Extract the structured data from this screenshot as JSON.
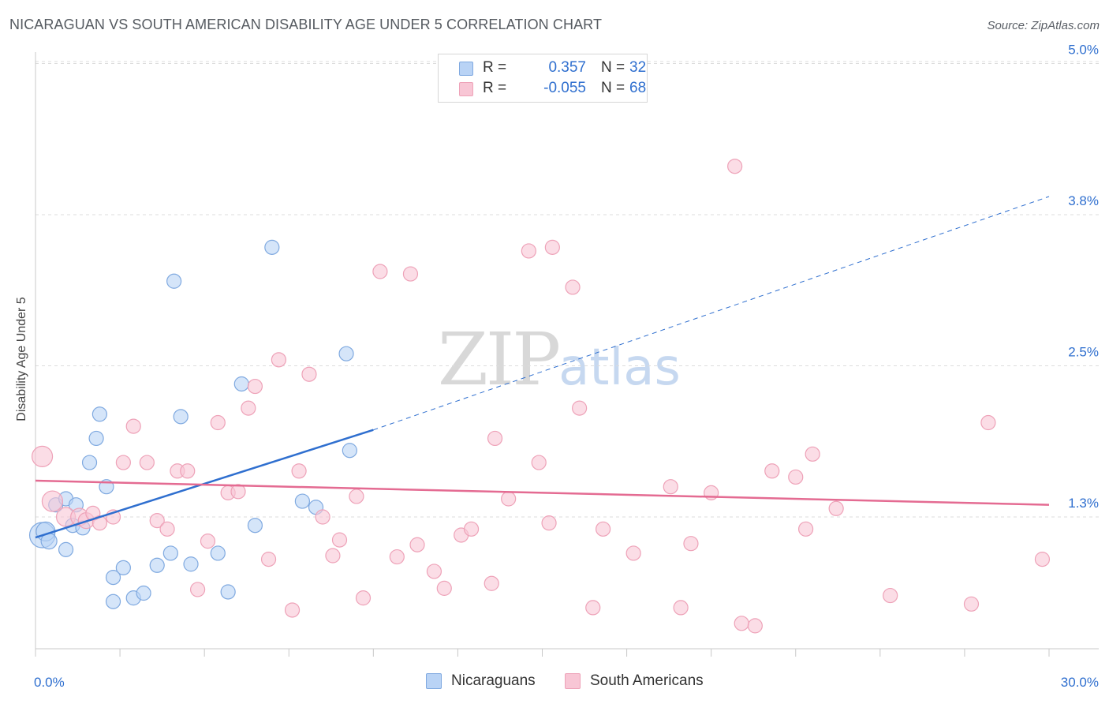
{
  "title": "NICARAGUAN VS SOUTH AMERICAN DISABILITY AGE UNDER 5 CORRELATION CHART",
  "source": "Source: ZipAtlas.com",
  "watermark": {
    "zip": "ZIP",
    "atlas": "atlas"
  },
  "colors": {
    "blue_fill": "#b9d3f5",
    "blue_stroke": "#7fa9e0",
    "blue_line": "#2f6fcf",
    "pink_fill": "#f8c6d5",
    "pink_stroke": "#eea2b8",
    "pink_line": "#e46b92",
    "accent_text": "#2f6fcf",
    "grid": "#dcdcdc"
  },
  "legend": {
    "rows": [
      {
        "r_label": "R =",
        "r_value": "0.357",
        "n_label": "N =",
        "n_value": "32"
      },
      {
        "r_label": "R =",
        "r_value": "-0.055",
        "n_label": "N =",
        "n_value": "68"
      }
    ]
  },
  "bottom_legend": [
    "Nicaraguans",
    "South Americans"
  ],
  "chart_data": {
    "type": "scatter",
    "title": "NICARAGUAN VS SOUTH AMERICAN DISABILITY AGE UNDER 5 CORRELATION CHART",
    "xlabel": "",
    "ylabel": "Disability Age Under 5",
    "xlim": [
      0,
      30
    ],
    "ylim": [
      0,
      5.2
    ],
    "x_ticks": [
      {
        "value": 0,
        "label": "0.0%"
      },
      {
        "value": 30,
        "label": "30.0%"
      }
    ],
    "y_ticks": [
      {
        "value": 1.25,
        "label": "1.3%"
      },
      {
        "value": 2.5,
        "label": "2.5%"
      },
      {
        "value": 3.75,
        "label": "3.8%"
      },
      {
        "value": 5.0,
        "label": "5.0%"
      }
    ],
    "grid": true,
    "legend_position": "top-center",
    "series": [
      {
        "name": "Nicaraguans",
        "color": "blue",
        "points": [
          [
            0.2,
            1.1,
            16
          ],
          [
            0.3,
            1.13,
            12
          ],
          [
            0.4,
            1.05,
            10
          ],
          [
            0.6,
            1.35,
            9
          ],
          [
            0.9,
            1.4,
            9
          ],
          [
            0.9,
            0.98,
            9
          ],
          [
            1.1,
            1.18,
            9
          ],
          [
            1.4,
            1.16,
            9
          ],
          [
            1.6,
            1.7,
            9
          ],
          [
            1.8,
            1.9,
            9
          ],
          [
            1.9,
            2.1,
            9
          ],
          [
            2.1,
            1.5,
            9
          ],
          [
            2.3,
            0.75,
            9
          ],
          [
            2.3,
            0.55,
            9
          ],
          [
            2.6,
            0.83,
            9
          ],
          [
            2.9,
            0.58,
            9
          ],
          [
            3.2,
            0.62,
            9
          ],
          [
            3.6,
            0.85,
            9
          ],
          [
            4.0,
            0.95,
            9
          ],
          [
            4.1,
            3.2,
            9
          ],
          [
            4.3,
            2.08,
            9
          ],
          [
            4.6,
            0.86,
            9
          ],
          [
            5.4,
            0.95,
            9
          ],
          [
            5.7,
            0.63,
            9
          ],
          [
            6.1,
            2.35,
            9
          ],
          [
            6.5,
            1.18,
            9
          ],
          [
            7.0,
            3.48,
            9
          ],
          [
            7.9,
            1.38,
            9
          ],
          [
            8.3,
            1.33,
            9
          ],
          [
            9.2,
            2.6,
            9
          ],
          [
            9.3,
            1.8,
            9
          ],
          [
            1.2,
            1.35,
            9
          ]
        ]
      },
      {
        "name": "South Americans",
        "color": "pink",
        "points": [
          [
            0.2,
            1.75,
            13
          ],
          [
            0.5,
            1.38,
            13
          ],
          [
            0.9,
            1.25,
            12
          ],
          [
            1.3,
            1.25,
            11
          ],
          [
            1.5,
            1.22,
            10
          ],
          [
            1.7,
            1.28,
            9
          ],
          [
            1.9,
            1.2,
            9
          ],
          [
            2.3,
            1.25,
            9
          ],
          [
            2.6,
            1.7,
            9
          ],
          [
            2.9,
            2.0,
            9
          ],
          [
            3.3,
            1.7,
            9
          ],
          [
            3.6,
            1.22,
            9
          ],
          [
            3.9,
            1.15,
            9
          ],
          [
            4.2,
            1.63,
            9
          ],
          [
            4.5,
            1.63,
            9
          ],
          [
            4.8,
            0.65,
            9
          ],
          [
            5.1,
            1.05,
            9
          ],
          [
            5.4,
            2.03,
            9
          ],
          [
            5.7,
            1.45,
            9
          ],
          [
            6.0,
            1.46,
            9
          ],
          [
            6.3,
            2.15,
            9
          ],
          [
            6.5,
            2.33,
            9
          ],
          [
            6.9,
            0.9,
            9
          ],
          [
            7.2,
            2.55,
            9
          ],
          [
            7.6,
            0.48,
            9
          ],
          [
            7.8,
            1.63,
            9
          ],
          [
            8.1,
            2.43,
            9
          ],
          [
            8.5,
            1.25,
            9
          ],
          [
            8.8,
            0.93,
            9
          ],
          [
            9.0,
            1.06,
            9
          ],
          [
            9.5,
            1.42,
            9
          ],
          [
            9.7,
            0.58,
            9
          ],
          [
            10.2,
            3.28,
            9
          ],
          [
            10.7,
            0.92,
            9
          ],
          [
            11.1,
            3.26,
            9
          ],
          [
            11.3,
            1.02,
            9
          ],
          [
            11.8,
            0.8,
            9
          ],
          [
            12.1,
            0.66,
            9
          ],
          [
            12.6,
            1.1,
            9
          ],
          [
            12.9,
            1.15,
            9
          ],
          [
            13.5,
            0.7,
            9
          ],
          [
            13.6,
            1.9,
            9
          ],
          [
            14.0,
            1.4,
            9
          ],
          [
            14.6,
            3.45,
            9
          ],
          [
            14.9,
            1.7,
            9
          ],
          [
            15.3,
            3.48,
            9
          ],
          [
            15.2,
            1.2,
            9
          ],
          [
            15.9,
            3.15,
            9
          ],
          [
            16.1,
            2.15,
            9
          ],
          [
            16.5,
            0.5,
            9
          ],
          [
            16.8,
            1.15,
            9
          ],
          [
            17.7,
            0.95,
            9
          ],
          [
            18.8,
            1.5,
            9
          ],
          [
            19.1,
            0.5,
            9
          ],
          [
            19.4,
            1.03,
            9
          ],
          [
            20.0,
            1.45,
            9
          ],
          [
            20.7,
            4.15,
            9
          ],
          [
            20.9,
            0.37,
            9
          ],
          [
            21.3,
            0.35,
            9
          ],
          [
            21.8,
            1.63,
            9
          ],
          [
            22.5,
            1.58,
            9
          ],
          [
            22.8,
            1.15,
            9
          ],
          [
            23.0,
            1.77,
            9
          ],
          [
            23.7,
            1.32,
            9
          ],
          [
            25.3,
            0.6,
            9
          ],
          [
            27.7,
            0.53,
            9
          ],
          [
            28.2,
            2.03,
            9
          ],
          [
            29.8,
            0.9,
            9
          ]
        ]
      }
    ],
    "trend_lines": [
      {
        "series": "Nicaraguans",
        "x_start": 0,
        "y_start": 1.08,
        "x_solid_end": 10,
        "y_solid_end": 1.97,
        "x_dashed_end": 30,
        "y_dashed_end": 3.9
      },
      {
        "series": "South Americans",
        "x_start": 0,
        "y_start": 1.55,
        "x_end": 30,
        "y_end": 1.35
      }
    ]
  }
}
